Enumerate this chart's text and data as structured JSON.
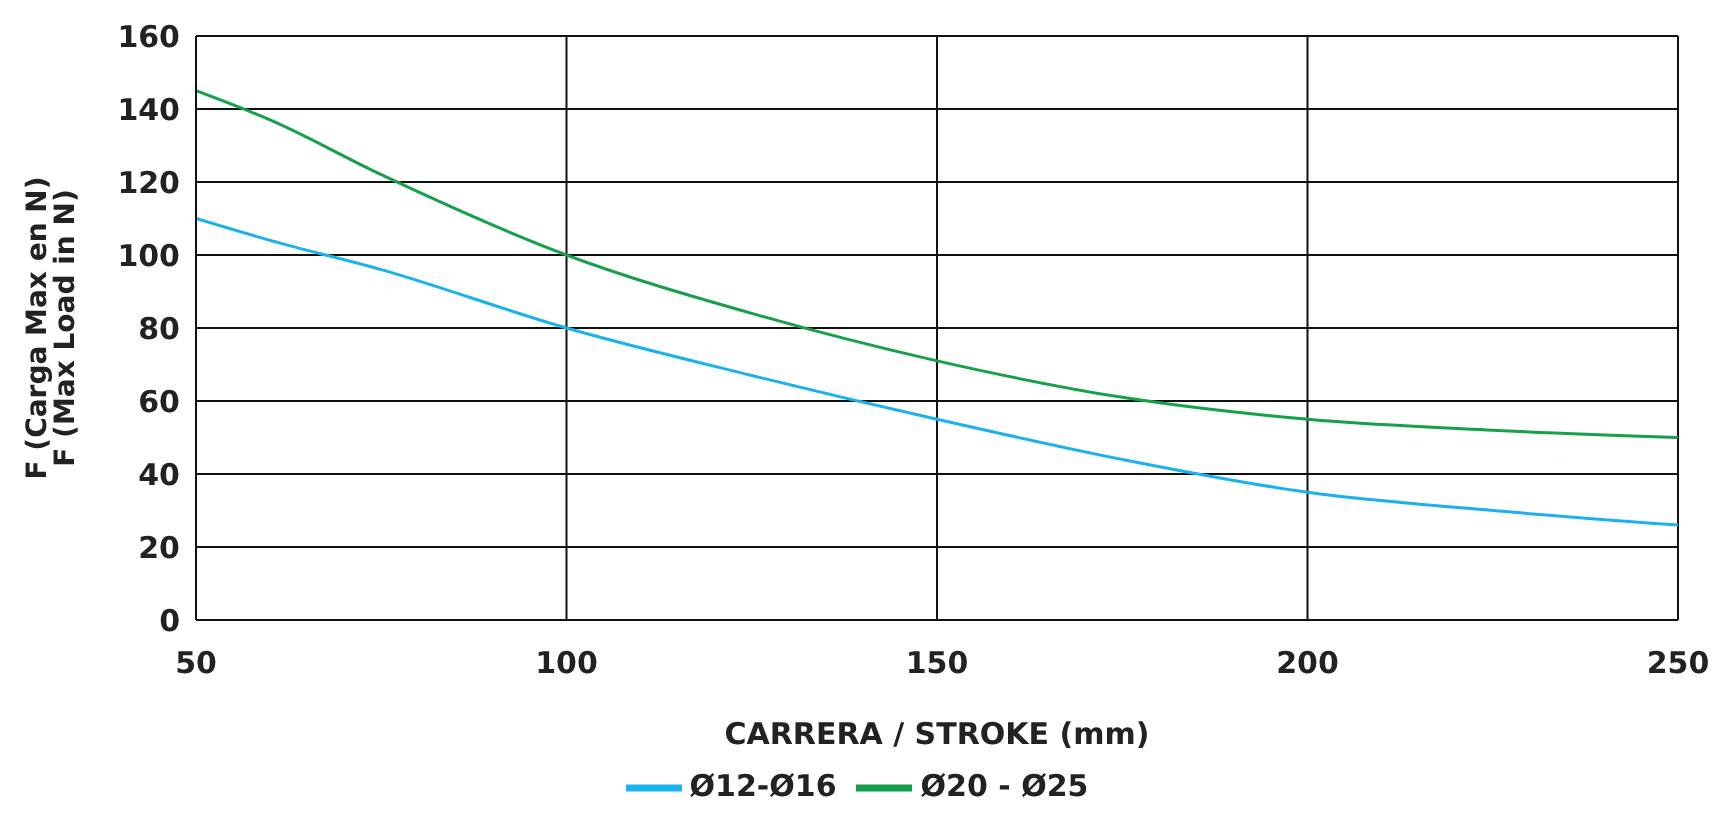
{
  "chart_data": {
    "type": "line",
    "xlabel": "CARRERA / STROKE (mm)",
    "ylabel": "F (Carga Max en N)\nF (Max Load in N)",
    "x": [
      50,
      60,
      75,
      100,
      125,
      150,
      175,
      200,
      225,
      250
    ],
    "series": [
      {
        "name": "Ø20 - Ø25",
        "color": "#16a04a",
        "values": [
          145,
          137,
          122,
          100,
          84,
          71,
          61,
          55,
          52,
          50
        ]
      },
      {
        "name": "Ø12-Ø16",
        "color": "#1ab2ee",
        "values": [
          110,
          104,
          96,
          80,
          67,
          55,
          44,
          35,
          30,
          26
        ]
      }
    ],
    "xlim": [
      50,
      250
    ],
    "xticks": [
      50,
      100,
      150,
      200,
      250
    ],
    "ylim": [
      0,
      160
    ],
    "yticks": [
      0,
      20,
      40,
      60,
      80,
      100,
      120,
      140,
      160
    ],
    "grid": true,
    "legend": "bottom",
    "marker": "none",
    "line_style": "solid"
  }
}
